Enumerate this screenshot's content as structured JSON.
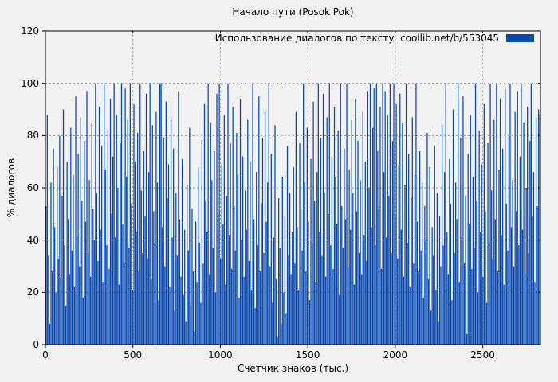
{
  "figure": {
    "background": "#f2f2f2",
    "grid_color": "#9a9a9a",
    "border_color": "#000000"
  },
  "chart_data": {
    "type": "bar",
    "style": "impulses",
    "title": "Начало пути (Posok Pok)",
    "xlabel": "Счетчик знаков (тыс.)",
    "ylabel": "% диалогов",
    "legend": "Использование диалогов по тексту  coollib.net/b/553045",
    "legend_position": "top-right-inside",
    "grid": true,
    "bar_color": "#0847ae",
    "xlim": [
      0,
      2830
    ],
    "ylim": [
      0,
      120
    ],
    "x_ticks": [
      0,
      500,
      1000,
      1500,
      2000,
      2500
    ],
    "y_ticks": [
      0,
      20,
      40,
      60,
      80,
      100,
      120
    ],
    "values": [
      53,
      88,
      34,
      8,
      62,
      28,
      75,
      45,
      20,
      68,
      33,
      80,
      25,
      57,
      90,
      38,
      15,
      70,
      48,
      27,
      83,
      36,
      65,
      22,
      95,
      42,
      73,
      30,
      87,
      55,
      18,
      78,
      47,
      97,
      35,
      63,
      26,
      85,
      52,
      40,
      100,
      58,
      32,
      91,
      44,
      76,
      24,
      100,
      67,
      38,
      82,
      29,
      94,
      50,
      72,
      100,
      41,
      88,
      60,
      23,
      77,
      100,
      46,
      31,
      98,
      64,
      86,
      37,
      100,
      54,
      21,
      92,
      70,
      43,
      81,
      28,
      100,
      59,
      35,
      74,
      49,
      96,
      33,
      66,
      100,
      25,
      84,
      51,
      39,
      89,
      62,
      17,
      100,
      100,
      45,
      79,
      30,
      93,
      56,
      69,
      22,
      87,
      41,
      75,
      13,
      58,
      34,
      97,
      48,
      26,
      71,
      19,
      44,
      9,
      61,
      36,
      83,
      15,
      52,
      28,
      5,
      47,
      24,
      68,
      39,
      16,
      78,
      31,
      92,
      55,
      43,
      100,
      27,
      85,
      63,
      37,
      74,
      20,
      96,
      50,
      100,
      33,
      69,
      46,
      88,
      23,
      57,
      100,
      42,
      77,
      29,
      91,
      53,
      36,
      81,
      65,
      18,
      94,
      40,
      72,
      26,
      59,
      44,
      86,
      32,
      70,
      21,
      100,
      48,
      14,
      66,
      38,
      95,
      28,
      54,
      79,
      35,
      90,
      47,
      62,
      100,
      30,
      73,
      16,
      41,
      84,
      25,
      3,
      56,
      37,
      8,
      64,
      20,
      49,
      12,
      76,
      34,
      58,
      27,
      43,
      68,
      31,
      89,
      45,
      21,
      77,
      52,
      36,
      100,
      62,
      28,
      83,
      47,
      17,
      71,
      39,
      93,
      55,
      24,
      66,
      100,
      43,
      79,
      34,
      96,
      58,
      26,
      87,
      50,
      100,
      38,
      72,
      29,
      91,
      64,
      46,
      82,
      19,
      100,
      53,
      37,
      75,
      48,
      100,
      30,
      67,
      44,
      86,
      58,
      23,
      94,
      51,
      78,
      35,
      63,
      27,
      89,
      42,
      70,
      32,
      97,
      60,
      100,
      45,
      83,
      98,
      38,
      100,
      74,
      52,
      91,
      29,
      100,
      66,
      97,
      41,
      88,
      57,
      100,
      35,
      78,
      100,
      49,
      92,
      33,
      69,
      96,
      44,
      85,
      26,
      61,
      100,
      39,
      73,
      22,
      56,
      87,
      31,
      65,
      100,
      47,
      28,
      74,
      36,
      62,
      18,
      53,
      40,
      81,
      25,
      68,
      13,
      45,
      34,
      76,
      21,
      58,
      9,
      49,
      30,
      84,
      38,
      66,
      100,
      43,
      27,
      71,
      54,
      17,
      90,
      35,
      62,
      48,
      100,
      24,
      79,
      41,
      95,
      31,
      57,
      4,
      73,
      46,
      88,
      29,
      64,
      37,
      100,
      55,
      20,
      82,
      43,
      69,
      26,
      92,
      51,
      16,
      77,
      39,
      100,
      59,
      33,
      86,
      48,
      100,
      28,
      67,
      94,
      42,
      75,
      23,
      98,
      54,
      36,
      80,
      100,
      45,
      63,
      30,
      89,
      51,
      97,
      38,
      72,
      100,
      44,
      85,
      27,
      60,
      91,
      35,
      78,
      100,
      49,
      66,
      24,
      87,
      53,
      90,
      88
    ]
  }
}
